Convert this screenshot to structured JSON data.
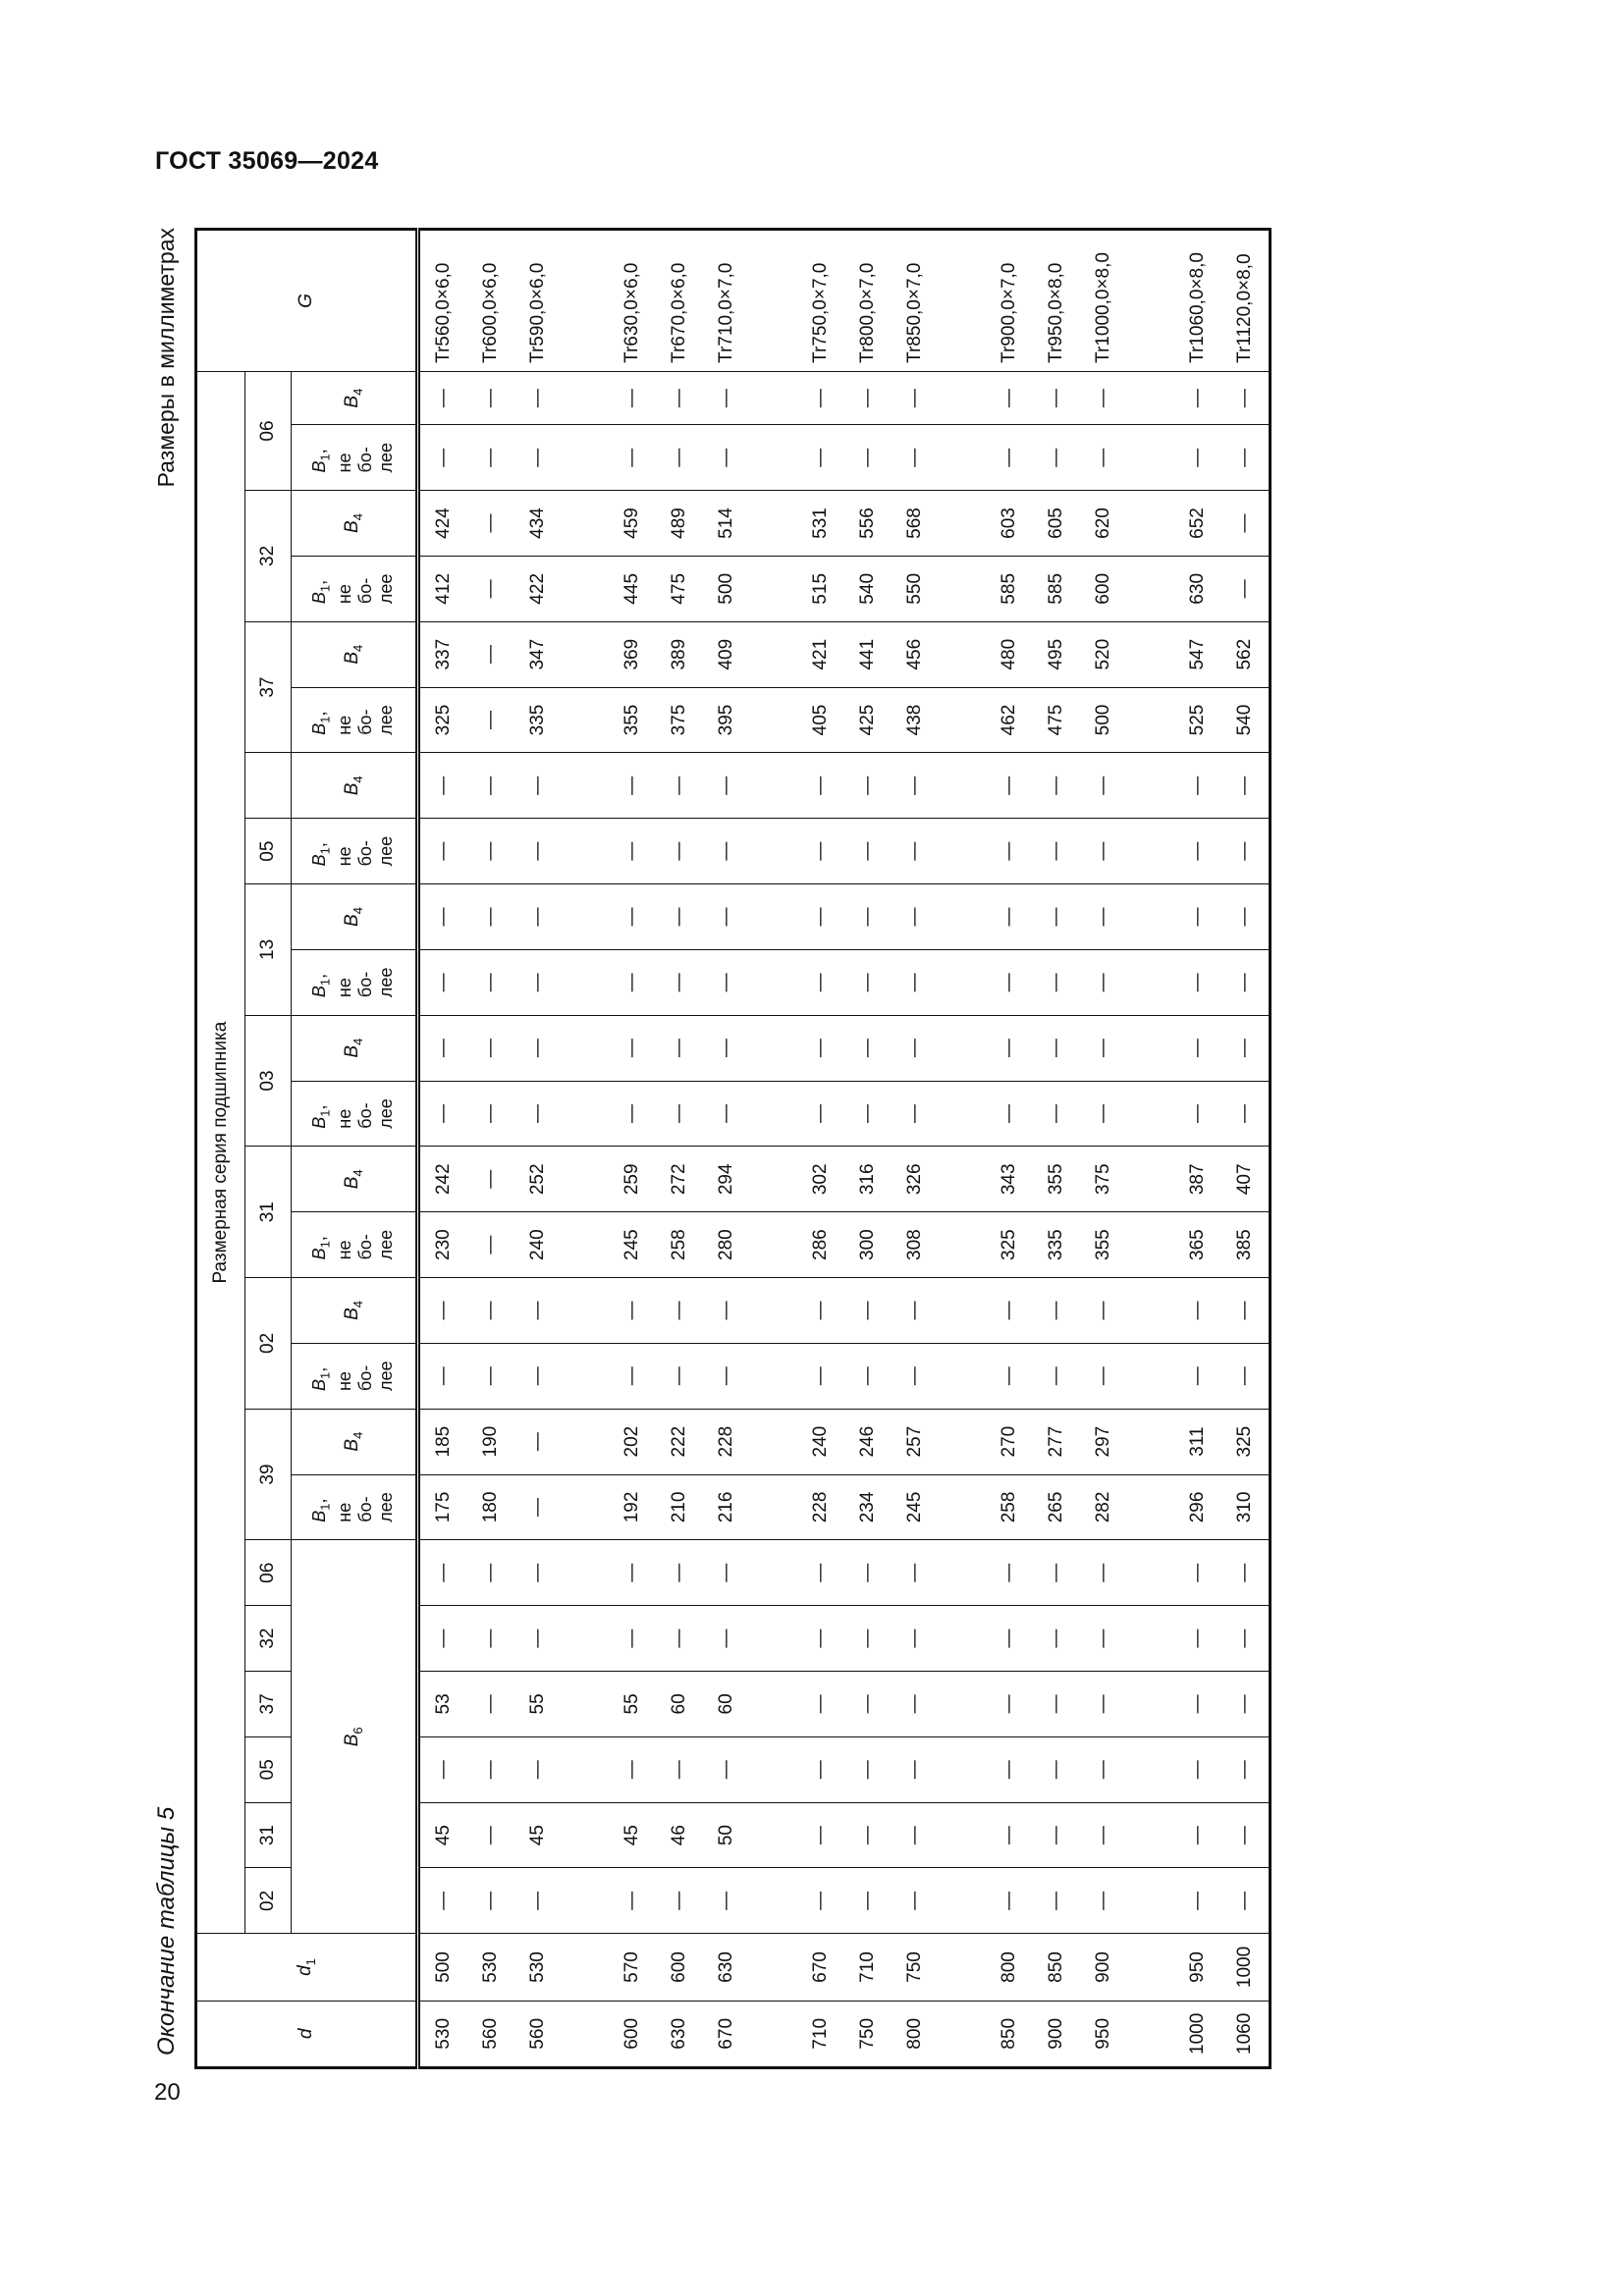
{
  "doc_title": "ГОСТ 35069—2024",
  "caption": "Окончание таблицы 5",
  "units_note": "Размеры в миллиметрах",
  "page_number": "20",
  "table": {
    "col_d": {
      "sym": "d"
    },
    "col_d1": {
      "sym": "d",
      "sub": "1"
    },
    "col_g": "G",
    "series_title": "Размерная серия подшипника",
    "b6_series": [
      "02",
      "31",
      "05",
      "37",
      "32",
      "06"
    ],
    "b6_label": {
      "sym": "B",
      "sub": "6"
    },
    "series_groups": [
      {
        "label": "39",
        "cols": [
          "B1",
          "B4"
        ]
      },
      {
        "label": "02",
        "cols": [
          "B1",
          "B4"
        ]
      },
      {
        "label": "31",
        "cols": [
          "B1",
          "B4"
        ]
      },
      {
        "label": "03",
        "cols": [
          "B1",
          "B4"
        ]
      },
      {
        "label": "13",
        "cols": [
          "B1",
          "B4"
        ]
      },
      {
        "label": "05",
        "cols": [
          "B1"
        ]
      },
      {
        "label": "",
        "cols": [
          "B4"
        ]
      },
      {
        "label": "37",
        "cols": [
          "B1",
          "B4"
        ]
      },
      {
        "label": "32",
        "cols": [
          "B1",
          "B4"
        ]
      },
      {
        "label": "06",
        "cols": [
          "B1",
          "B4"
        ]
      }
    ],
    "b1_label": {
      "sym": "B",
      "sub": "1",
      "suffix": ",",
      "lines": [
        "не",
        "бо-",
        "лее"
      ]
    },
    "b4_label": {
      "sym": "B",
      "sub": "4"
    },
    "body_groups": [
      [
        [
          "530",
          "500",
          "—",
          "45",
          "—",
          "53",
          "—",
          "—",
          "175",
          "185",
          "—",
          "—",
          "230",
          "242",
          "—",
          "—",
          "—",
          "—",
          "—",
          "—",
          "325",
          "337",
          "412",
          "424",
          "—",
          "—",
          "Tr560,0×6,0"
        ],
        [
          "560",
          "530",
          "—",
          "—",
          "—",
          "—",
          "—",
          "—",
          "180",
          "190",
          "—",
          "—",
          "—",
          "—",
          "—",
          "—",
          "—",
          "—",
          "—",
          "—",
          "—",
          "—",
          "—",
          "—",
          "—",
          "—",
          "Tr600,0×6,0"
        ],
        [
          "560",
          "530",
          "—",
          "45",
          "—",
          "55",
          "—",
          "—",
          "—",
          "—",
          "—",
          "—",
          "240",
          "252",
          "—",
          "—",
          "—",
          "—",
          "—",
          "—",
          "335",
          "347",
          "422",
          "434",
          "—",
          "—",
          "Tr590,0×6,0"
        ]
      ],
      [
        [
          "600",
          "570",
          "—",
          "45",
          "—",
          "55",
          "—",
          "—",
          "192",
          "202",
          "—",
          "—",
          "245",
          "259",
          "—",
          "—",
          "—",
          "—",
          "—",
          "—",
          "355",
          "369",
          "445",
          "459",
          "—",
          "—",
          "Tr630,0×6,0"
        ],
        [
          "630",
          "600",
          "—",
          "46",
          "—",
          "60",
          "—",
          "—",
          "210",
          "222",
          "—",
          "—",
          "258",
          "272",
          "—",
          "—",
          "—",
          "—",
          "—",
          "—",
          "375",
          "389",
          "475",
          "489",
          "—",
          "—",
          "Tr670,0×6,0"
        ],
        [
          "670",
          "630",
          "—",
          "50",
          "—",
          "60",
          "—",
          "—",
          "216",
          "228",
          "—",
          "—",
          "280",
          "294",
          "—",
          "—",
          "—",
          "—",
          "—",
          "—",
          "395",
          "409",
          "500",
          "514",
          "—",
          "—",
          "Tr710,0×7,0"
        ]
      ],
      [
        [
          "710",
          "670",
          "—",
          "—",
          "—",
          "—",
          "—",
          "—",
          "228",
          "240",
          "—",
          "—",
          "286",
          "302",
          "—",
          "—",
          "—",
          "—",
          "—",
          "—",
          "405",
          "421",
          "515",
          "531",
          "—",
          "—",
          "Tr750,0×7,0"
        ],
        [
          "750",
          "710",
          "—",
          "—",
          "—",
          "—",
          "—",
          "—",
          "234",
          "246",
          "—",
          "—",
          "300",
          "316",
          "—",
          "—",
          "—",
          "—",
          "—",
          "—",
          "425",
          "441",
          "540",
          "556",
          "—",
          "—",
          "Tr800,0×7,0"
        ],
        [
          "800",
          "750",
          "—",
          "—",
          "—",
          "—",
          "—",
          "—",
          "245",
          "257",
          "—",
          "—",
          "308",
          "326",
          "—",
          "—",
          "—",
          "—",
          "—",
          "—",
          "438",
          "456",
          "550",
          "568",
          "—",
          "—",
          "Tr850,0×7,0"
        ]
      ],
      [
        [
          "850",
          "800",
          "—",
          "—",
          "—",
          "—",
          "—",
          "—",
          "258",
          "270",
          "—",
          "—",
          "325",
          "343",
          "—",
          "—",
          "—",
          "—",
          "—",
          "—",
          "462",
          "480",
          "585",
          "603",
          "—",
          "—",
          "Tr900,0×7,0"
        ],
        [
          "900",
          "850",
          "—",
          "—",
          "—",
          "—",
          "—",
          "—",
          "265",
          "277",
          "—",
          "—",
          "335",
          "355",
          "—",
          "—",
          "—",
          "—",
          "—",
          "—",
          "475",
          "495",
          "585",
          "605",
          "—",
          "—",
          "Tr950,0×8,0"
        ],
        [
          "950",
          "900",
          "—",
          "—",
          "—",
          "—",
          "—",
          "—",
          "282",
          "297",
          "—",
          "—",
          "355",
          "375",
          "—",
          "—",
          "—",
          "—",
          "—",
          "—",
          "500",
          "520",
          "600",
          "620",
          "—",
          "—",
          "Tr1000,0×8,0"
        ]
      ],
      [
        [
          "1000",
          "950",
          "—",
          "—",
          "—",
          "—",
          "—",
          "—",
          "296",
          "311",
          "—",
          "—",
          "365",
          "387",
          "—",
          "—",
          "—",
          "—",
          "—",
          "—",
          "525",
          "547",
          "630",
          "652",
          "—",
          "—",
          "Tr1060,0×8,0"
        ],
        [
          "1060",
          "1000",
          "—",
          "—",
          "—",
          "—",
          "—",
          "—",
          "310",
          "325",
          "—",
          "—",
          "385",
          "407",
          "—",
          "—",
          "—",
          "—",
          "—",
          "—",
          "540",
          "562",
          "—",
          "—",
          "—",
          "—",
          "Tr1120,0×8,0"
        ]
      ]
    ]
  }
}
